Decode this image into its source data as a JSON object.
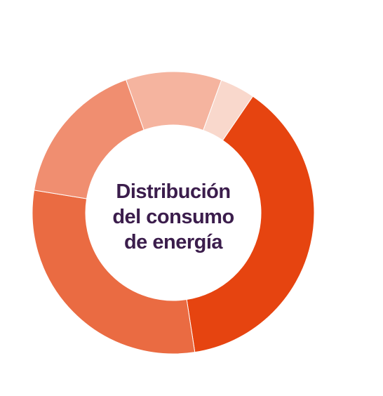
{
  "chart_data": {
    "type": "donut",
    "title": "Distribución del consumo de energía",
    "values": [
      11,
      4,
      38,
      30,
      17
    ],
    "colors": [
      "#f5b49f",
      "#f9d8cc",
      "#e64410",
      "#ea6b42",
      "#f08e70"
    ]
  }
}
